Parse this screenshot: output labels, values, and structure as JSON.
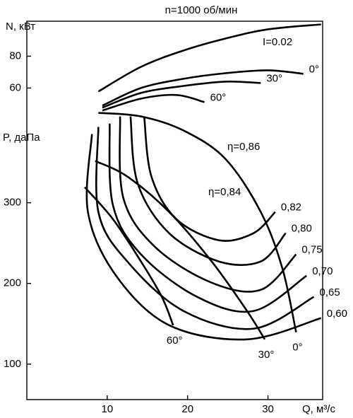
{
  "chart_data": {
    "type": "line",
    "title": "n=1000 об/мин",
    "x_label": "Q, м³/с",
    "y_label": "P, даПа",
    "y2_label": "N, кВт",
    "annotations": [
      "I=0.02",
      "η=0,86",
      "η=0,84"
    ],
    "color": "#000000",
    "xlim": [
      0,
      36.8
    ],
    "xticks": [
      10,
      20,
      30
    ],
    "ylim": [
      56,
      525
    ],
    "yticks": [
      100,
      200,
      300
    ],
    "y2lim": [
      -136,
      102
    ],
    "y2ticks": [
      60,
      80
    ],
    "series": [
      {
        "axis": "y2",
        "x": [
          8.9,
          14.2,
          19.5,
          24.7,
          30,
          36.6
        ],
        "values": [
          57.8,
          73.3,
          83.6,
          91.1,
          96.9,
          100
        ]
      },
      {
        "name": "0°",
        "axis": "y2",
        "x": [
          9.4,
          14.2,
          19.5,
          24.7,
          30,
          34.4
        ],
        "values": [
          48.9,
          60,
          65.8,
          69.3,
          71.1,
          68.9
        ]
      },
      {
        "name": "30°",
        "axis": "y2",
        "x": [
          9.4,
          14.2,
          19.5,
          24.7,
          29.1
        ],
        "values": [
          47.6,
          56.9,
          61.3,
          64,
          63.1
        ]
      },
      {
        "name": "60°",
        "axis": "y2",
        "x": [
          9.4,
          14.2,
          18.6,
          22.1
        ],
        "values": [
          45.8,
          53.3,
          55.6,
          51.1
        ]
      },
      {
        "name": "0°",
        "x": [
          8.9,
          14.2,
          19.5,
          24.7,
          29.1,
          31.8,
          33.5
        ],
        "values": [
          411.4,
          407,
          389.5,
          354.4,
          288.6,
          218.4,
          139.5
        ]
      },
      {
        "name": "30°",
        "x": [
          8.5,
          12.5,
          17.7,
          23,
          27.4,
          29.6
        ],
        "values": [
          351.8,
          332.5,
          288.6,
          227.2,
          165.8,
          130.7
        ]
      },
      {
        "name": "60°",
        "x": [
          7.2,
          10.7,
          14.2,
          16.8,
          18.2
        ],
        "values": [
          319.3,
          279.8,
          227.2,
          183.3,
          148.2
        ]
      },
      {
        "name": "0,82",
        "x": [
          14.6,
          15.5,
          18.6,
          23.9,
          28.2,
          30.9
        ],
        "values": [
          407,
          332.5,
          279.8,
          253.5,
          262.3,
          288.6
        ]
      },
      {
        "name": "0,80",
        "x": [
          12.9,
          13.8,
          17.7,
          23.9,
          29.1,
          32.2
        ],
        "values": [
          407,
          323.7,
          262.3,
          227.2,
          227.2,
          262.3
        ]
      },
      {
        "name": "0,75",
        "x": [
          11.6,
          12,
          16,
          23,
          29.1,
          33.5
        ],
        "values": [
          407,
          306.1,
          244.7,
          200.9,
          192.1,
          236
        ]
      },
      {
        "name": "0,70",
        "x": [
          10.3,
          10.7,
          14.2,
          21.2,
          28.2,
          34.8
        ],
        "values": [
          398.2,
          297.4,
          236,
          183.3,
          165.8,
          209.6
        ]
      },
      {
        "name": "0,65",
        "x": [
          8.9,
          8.9,
          12.5,
          19.5,
          28.2,
          35.7
        ],
        "values": [
          393.9,
          288.6,
          227.2,
          165.8,
          143.9,
          183.3
        ]
      },
      {
        "name": "0,60",
        "x": [
          8.1,
          7.6,
          11.1,
          17.7,
          27.4,
          36.6
        ],
        "values": [
          385.1,
          288.6,
          209.6,
          148.2,
          130.7,
          157
        ]
      }
    ]
  }
}
